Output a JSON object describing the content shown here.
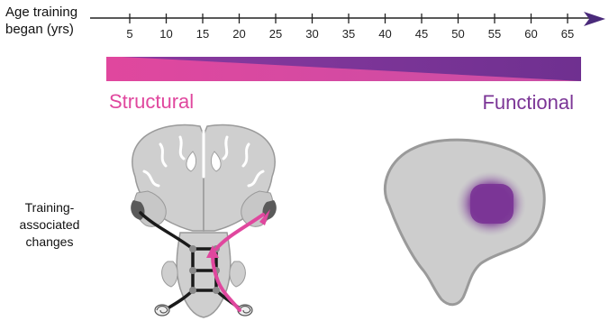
{
  "axis": {
    "title_line1": "Age training",
    "title_line2": "began (yrs)",
    "ticks": [
      "5",
      "10",
      "15",
      "20",
      "25",
      "30",
      "35",
      "40",
      "45",
      "50",
      "55",
      "60",
      "65"
    ]
  },
  "gradient": {
    "left_label": "Structural",
    "right_label": "Functional",
    "left_color": "#e0479e",
    "right_color": "#7b3596"
  },
  "left_panel": {
    "label_line1": "Training-",
    "label_line2": "associated",
    "label_line3": "changes"
  }
}
